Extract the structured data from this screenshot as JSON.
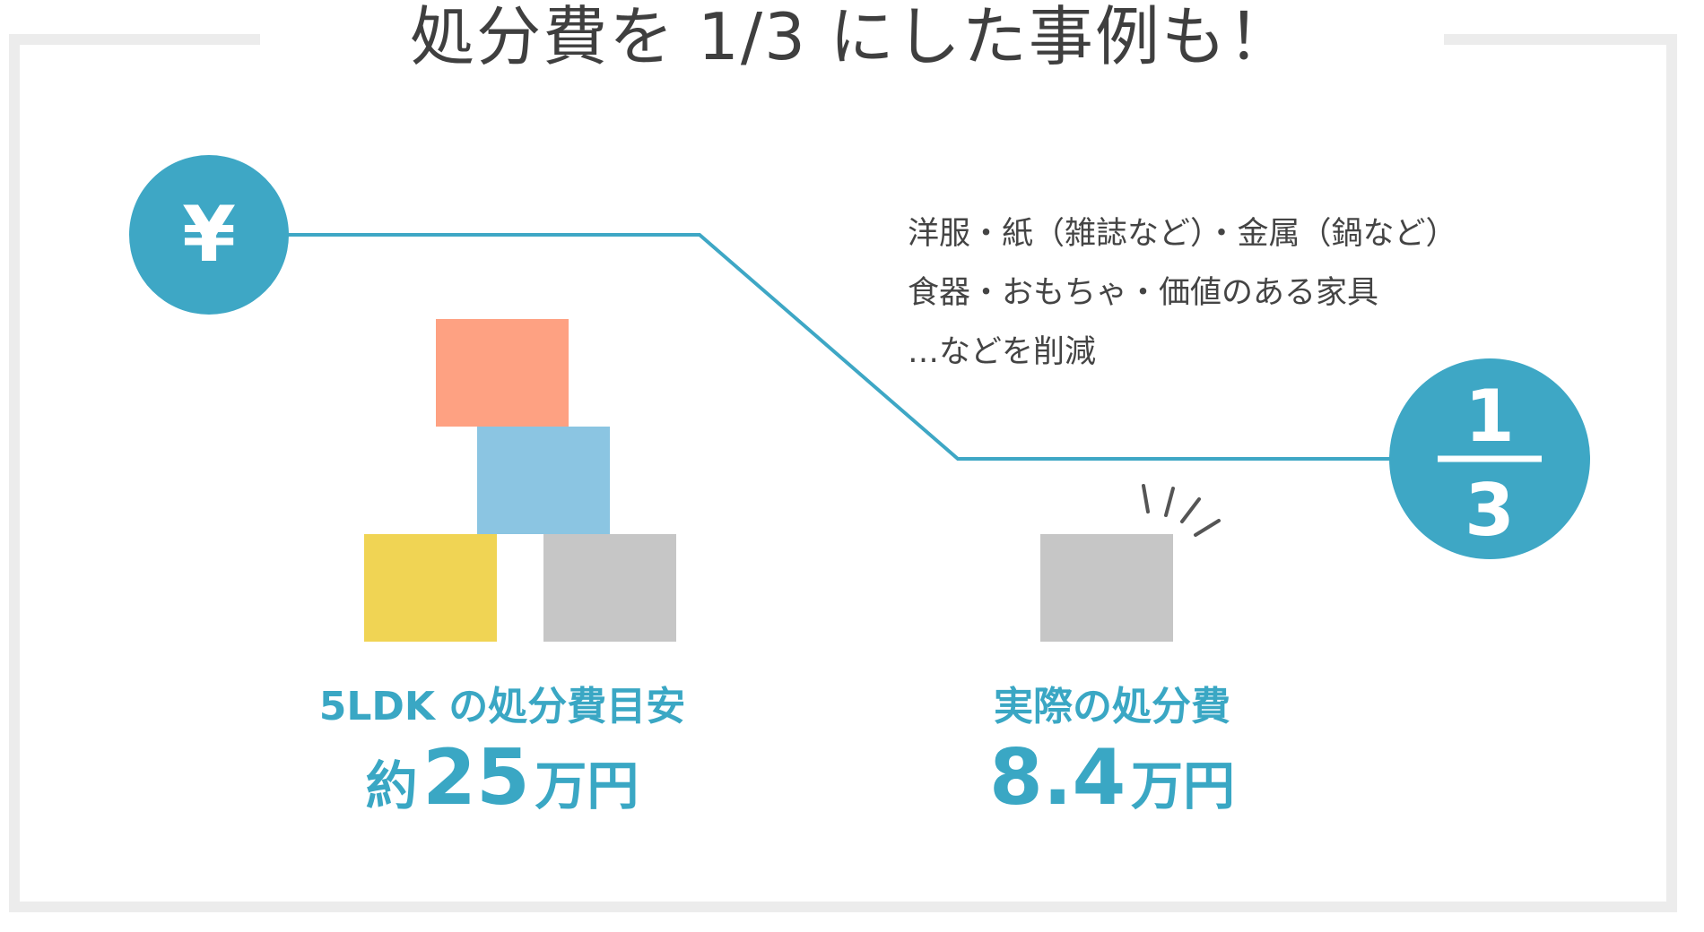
{
  "title": "処分費を 1/3 にした事例も！",
  "yen_symbol": "¥",
  "fraction": {
    "numerator": "1",
    "denominator": "3"
  },
  "notes": [
    "洋服・紙（雑誌など）・金属（鍋など）",
    "食器・おもちゃ・価値のある家具",
    "…などを削減"
  ],
  "left": {
    "label": "5LDK の処分費目安",
    "prefix": "約",
    "amount": "25",
    "unit": "万円"
  },
  "right": {
    "label": "実際の処分費",
    "amount": "8.4",
    "unit": "万円"
  },
  "colors": {
    "accent": "#3ea7c5",
    "box_orange": "#fea182",
    "box_blue": "#8bc5e2",
    "box_yellow": "#f0d454",
    "box_gray": "#c6c6c6",
    "frame": "#ececec",
    "title_text": "#3f3f3f"
  }
}
